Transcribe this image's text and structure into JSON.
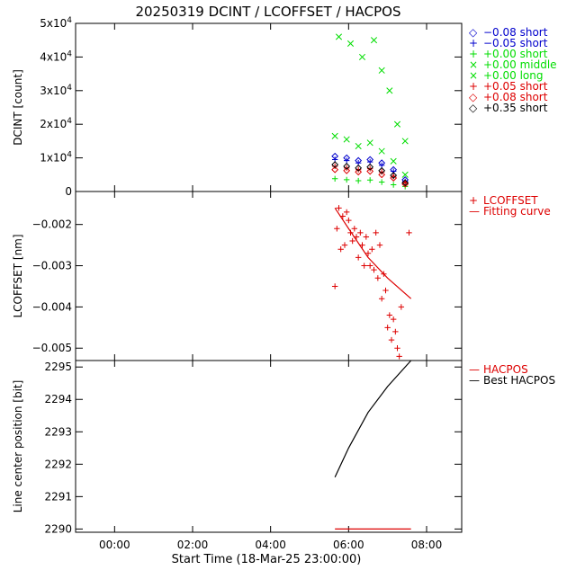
{
  "title": "20250319 DCINT / LCOFFSET / HACPOS",
  "xlabel": "Start Time (18-Mar-25 23:00:00)",
  "x_ticks": [
    "00:00",
    "02:00",
    "04:00",
    "06:00",
    "08:00"
  ],
  "chart_data": [
    {
      "type": "scatter",
      "ylabel": "DCINT [count]",
      "xlim_hours": [
        -1.0,
        8.9
      ],
      "ylim": [
        0,
        50000
      ],
      "y_ticks": [
        {
          "value": 0,
          "label": "0"
        },
        {
          "value": 10000,
          "label": "1x10^4"
        },
        {
          "value": 20000,
          "label": "2x10^4"
        },
        {
          "value": 30000,
          "label": "3x10^4"
        },
        {
          "value": 40000,
          "label": "4x10^4"
        },
        {
          "value": 50000,
          "label": "5x10^4"
        }
      ],
      "legend": [
        {
          "symbol": "◇",
          "label": "−0.08 short",
          "color": "#0000cc"
        },
        {
          "symbol": "+",
          "label": "−0.05 short",
          "color": "#0000cc"
        },
        {
          "symbol": "+",
          "label": "+0.00 short",
          "color": "#00dd00"
        },
        {
          "symbol": "×",
          "label": "+0.00 middle",
          "color": "#00dd00"
        },
        {
          "symbol": "×",
          "label": "+0.00 long",
          "color": "#00dd00"
        },
        {
          "symbol": "+",
          "label": "+0.05 short",
          "color": "#dd0000"
        },
        {
          "symbol": "◇",
          "label": "+0.08 short",
          "color": "#dd0000"
        },
        {
          "symbol": "◇",
          "label": "+0.35 short",
          "color": "#000000"
        }
      ],
      "series": [
        {
          "marker": "diamond",
          "color": "#0000cc",
          "x": [
            5.65,
            5.95,
            6.25,
            6.55,
            6.85,
            7.15,
            7.45
          ],
          "y": [
            10500,
            10000,
            9200,
            9500,
            8500,
            6500,
            3500
          ]
        },
        {
          "marker": "plus",
          "color": "#0000cc",
          "x": [
            5.65,
            5.95,
            6.25,
            6.55,
            6.85,
            7.15,
            7.45
          ],
          "y": [
            9500,
            9200,
            8500,
            8800,
            7800,
            6000,
            3000
          ]
        },
        {
          "marker": "plus",
          "color": "#00dd00",
          "x": [
            5.65,
            5.95,
            6.25,
            6.55,
            6.85,
            7.15,
            7.45
          ],
          "y": [
            3800,
            3500,
            3200,
            3400,
            2800,
            2000,
            1500
          ]
        },
        {
          "marker": "cross",
          "color": "#00dd00",
          "x": [
            5.65,
            5.95,
            6.25,
            6.55,
            6.85,
            7.15,
            7.45
          ],
          "y": [
            16500,
            15500,
            13500,
            14500,
            12000,
            9000,
            5000
          ]
        },
        {
          "marker": "cross",
          "color": "#00dd00",
          "x": [
            5.75,
            6.05,
            6.35,
            6.65,
            6.85,
            7.05,
            7.25,
            7.45
          ],
          "y": [
            46000,
            44000,
            40000,
            45000,
            36000,
            30000,
            20000,
            15000
          ]
        },
        {
          "marker": "plus",
          "color": "#dd0000",
          "x": [
            5.65,
            5.95,
            6.25,
            6.55,
            6.85,
            7.15,
            7.45
          ],
          "y": [
            7500,
            7000,
            6500,
            6800,
            5800,
            4500,
            2500
          ]
        },
        {
          "marker": "diamond",
          "color": "#dd0000",
          "x": [
            5.65,
            5.95,
            6.25,
            6.55,
            6.85,
            7.15,
            7.45
          ],
          "y": [
            6500,
            6200,
            5800,
            6000,
            5000,
            4000,
            2200
          ]
        },
        {
          "marker": "diamond",
          "color": "#000000",
          "x": [
            5.65,
            5.95,
            6.25,
            6.55,
            6.85,
            7.15,
            7.45
          ],
          "y": [
            8000,
            7500,
            7000,
            7300,
            6200,
            4800,
            2600
          ]
        }
      ]
    },
    {
      "type": "scatter",
      "ylabel": "LCOFFSET [nm]",
      "ylim": [
        -0.0053,
        -0.0012
      ],
      "y_ticks": [
        {
          "value": -0.002,
          "label": "−0.002"
        },
        {
          "value": -0.003,
          "label": "−0.003"
        },
        {
          "value": -0.004,
          "label": "−0.004"
        },
        {
          "value": -0.005,
          "label": "−0.005"
        }
      ],
      "legend": [
        {
          "symbol": "+",
          "label": "LCOFFSET",
          "color": "#dd0000"
        },
        {
          "symbol": "—",
          "label": "Fitting curve",
          "color": "#dd0000"
        }
      ],
      "points": {
        "color": "#dd0000",
        "x": [
          5.65,
          5.7,
          5.75,
          5.8,
          5.85,
          5.9,
          5.95,
          6.0,
          6.05,
          6.1,
          6.15,
          6.2,
          6.25,
          6.3,
          6.35,
          6.4,
          6.45,
          6.5,
          6.55,
          6.6,
          6.65,
          6.7,
          6.75,
          6.8,
          6.85,
          6.9,
          6.95,
          7.0,
          7.05,
          7.1,
          7.15,
          7.2,
          7.25,
          7.3,
          7.35,
          7.55
        ],
        "y": [
          -0.0035,
          -0.0021,
          -0.0016,
          -0.0026,
          -0.0018,
          -0.0025,
          -0.0017,
          -0.0019,
          -0.0022,
          -0.0024,
          -0.0021,
          -0.0023,
          -0.0028,
          -0.0022,
          -0.0025,
          -0.003,
          -0.0023,
          -0.0027,
          -0.003,
          -0.0026,
          -0.0031,
          -0.0022,
          -0.0033,
          -0.0025,
          -0.0038,
          -0.0032,
          -0.0036,
          -0.0045,
          -0.0042,
          -0.0048,
          -0.0043,
          -0.0046,
          -0.005,
          -0.0052,
          -0.004,
          -0.0022
        ]
      },
      "fit": {
        "color": "#dd0000",
        "x": [
          5.65,
          6.0,
          6.5,
          7.0,
          7.6
        ],
        "y": [
          -0.0016,
          -0.0021,
          -0.0028,
          -0.0033,
          -0.0038
        ]
      }
    },
    {
      "type": "line",
      "ylabel": "Line center position [bit]",
      "ylim": [
        2289.9,
        2295.2
      ],
      "y_ticks": [
        {
          "value": 2290,
          "label": "2290"
        },
        {
          "value": 2291,
          "label": "2291"
        },
        {
          "value": 2292,
          "label": "2292"
        },
        {
          "value": 2293,
          "label": "2293"
        },
        {
          "value": 2294,
          "label": "2294"
        },
        {
          "value": 2295,
          "label": "2295"
        }
      ],
      "legend": [
        {
          "symbol": "—",
          "label": "HACPOS",
          "color": "#dd0000"
        },
        {
          "symbol": "—",
          "label": "Best HACPOS",
          "color": "#000000"
        }
      ],
      "series": [
        {
          "color": "#dd0000",
          "x": [
            5.65,
            7.6
          ],
          "y": [
            2290.0,
            2290.0
          ]
        },
        {
          "color": "#000000",
          "x": [
            5.65,
            6.0,
            6.5,
            7.0,
            7.6
          ],
          "y": [
            2291.6,
            2292.5,
            2293.6,
            2294.4,
            2295.2
          ]
        }
      ]
    }
  ]
}
